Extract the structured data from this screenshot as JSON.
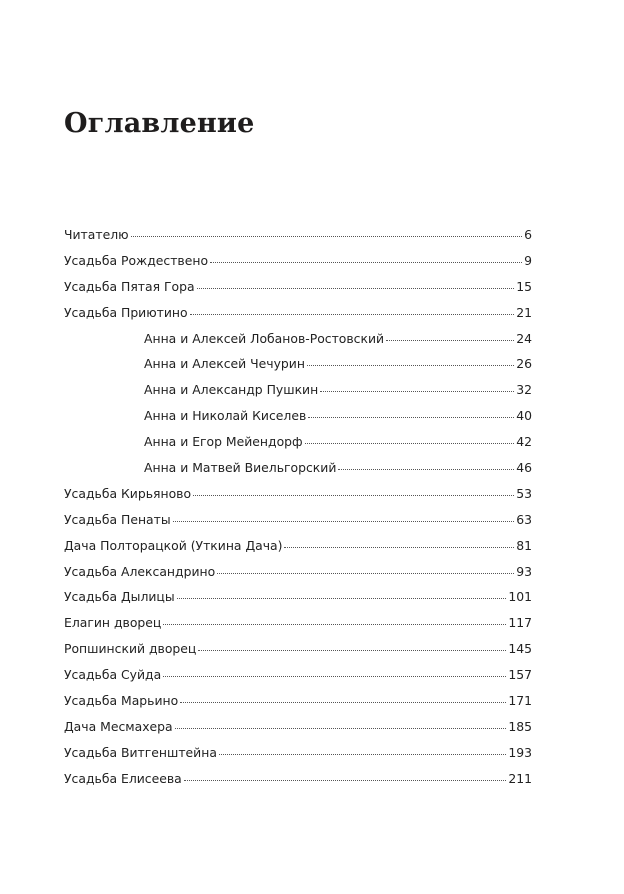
{
  "title": "Оглавление",
  "entries": [
    {
      "label": "Читателю",
      "page": "6",
      "sub": false
    },
    {
      "label": "Усадьба Рождествено",
      "page": "9",
      "sub": false
    },
    {
      "label": "Усадьба Пятая Гора",
      "page": "15",
      "sub": false
    },
    {
      "label": "Усадьба Приютино",
      "page": "21",
      "sub": false
    },
    {
      "label": "Анна и Алексей Лобанов-Ростовский",
      "page": "24",
      "sub": true
    },
    {
      "label": "Анна и Алексей Чечурин",
      "page": "26",
      "sub": true
    },
    {
      "label": "Анна и Александр Пушкин",
      "page": "32",
      "sub": true
    },
    {
      "label": "Анна и Николай Киселев",
      "page": "40",
      "sub": true
    },
    {
      "label": "Анна и Егор Мейендорф",
      "page": "42",
      "sub": true
    },
    {
      "label": "Анна и Матвей Виельгорский",
      "page": "46",
      "sub": true
    },
    {
      "label": "Усадьба Кирьяново",
      "page": "53",
      "sub": false
    },
    {
      "label": "Усадьба Пенаты",
      "page": "63",
      "sub": false
    },
    {
      "label": "Дача Полторацкой (Уткина Дача)",
      "page": "81",
      "sub": false
    },
    {
      "label": "Усадьба Александрино",
      "page": "93",
      "sub": false
    },
    {
      "label": "Усадьба Дылицы",
      "page": "101",
      "sub": false
    },
    {
      "label": "Елагин дворец",
      "page": "117",
      "sub": false
    },
    {
      "label": "Ропшинский дворец",
      "page": "145",
      "sub": false
    },
    {
      "label": "Усадьба Суйда",
      "page": "157",
      "sub": false
    },
    {
      "label": "Усадьба Марьино",
      "page": "171",
      "sub": false
    },
    {
      "label": "Дача Месмахера",
      "page": "185",
      "sub": false
    },
    {
      "label": "Усадьба Витгенштейна",
      "page": "193",
      "sub": false
    },
    {
      "label": "Усадьба Елисеева",
      "page": "211",
      "sub": false
    }
  ]
}
